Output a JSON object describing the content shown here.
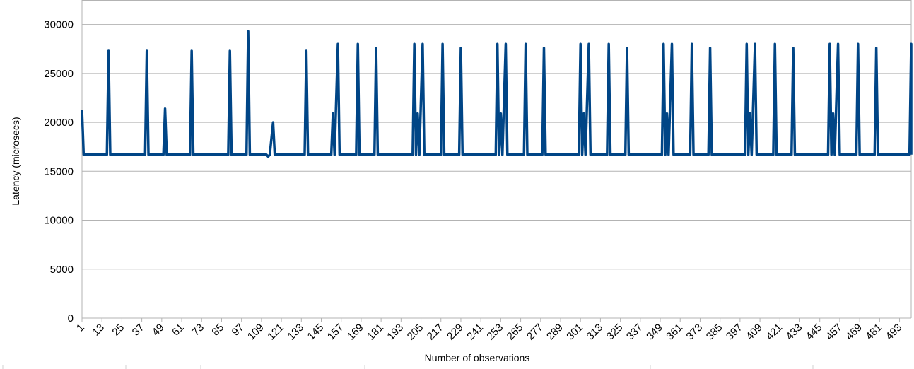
{
  "chart_data": {
    "type": "line",
    "title": "",
    "xlabel": "Number of observations",
    "ylabel": "Latency (microsecs)",
    "ylim": [
      0,
      32500
    ],
    "xlim": [
      1,
      500
    ],
    "grid": true,
    "line_color": "#004586",
    "yticks": [
      0,
      5000,
      10000,
      15000,
      20000,
      25000,
      30000
    ],
    "xtick_start": 1,
    "xtick_step": 12,
    "xtick_count": 42,
    "baseline": 16700,
    "series": [
      {
        "points": [
          [
            1,
            21300
          ],
          [
            2,
            16700
          ],
          [
            16,
            16700
          ],
          [
            17,
            27300
          ],
          [
            18,
            16700
          ],
          [
            39,
            16700
          ],
          [
            40,
            27300
          ],
          [
            41,
            16700
          ],
          [
            50,
            16700
          ],
          [
            51,
            21400
          ],
          [
            52,
            16700
          ],
          [
            66,
            16700
          ],
          [
            67,
            27300
          ],
          [
            68,
            16700
          ],
          [
            89,
            16700
          ],
          [
            90,
            27300
          ],
          [
            91,
            16700
          ],
          [
            100,
            16700
          ],
          [
            101,
            29300
          ],
          [
            102,
            16700
          ],
          [
            112,
            16700
          ],
          [
            113,
            16500
          ],
          [
            114,
            16700
          ],
          [
            116,
            20000
          ],
          [
            117,
            16700
          ],
          [
            135,
            16700
          ],
          [
            136,
            27300
          ],
          [
            137,
            16700
          ],
          [
            151,
            16700
          ],
          [
            152,
            20900
          ],
          [
            153,
            16700
          ],
          [
            155,
            28000
          ],
          [
            156,
            16700
          ],
          [
            166,
            16700
          ],
          [
            167,
            28000
          ],
          [
            168,
            16700
          ],
          [
            177,
            16700
          ],
          [
            178,
            27600
          ],
          [
            179,
            16700
          ],
          [
            200,
            16700
          ],
          [
            201,
            28000
          ],
          [
            202,
            16700
          ],
          [
            203,
            20900
          ],
          [
            204,
            16700
          ],
          [
            206,
            28000
          ],
          [
            207,
            16700
          ],
          [
            217,
            16700
          ],
          [
            218,
            28000
          ],
          [
            219,
            16700
          ],
          [
            228,
            16700
          ],
          [
            229,
            27600
          ],
          [
            230,
            16700
          ],
          [
            250,
            16700
          ],
          [
            251,
            28000
          ],
          [
            252,
            16700
          ],
          [
            253,
            20900
          ],
          [
            254,
            16700
          ],
          [
            256,
            28000
          ],
          [
            257,
            16700
          ],
          [
            267,
            16700
          ],
          [
            268,
            28000
          ],
          [
            269,
            16700
          ],
          [
            278,
            16700
          ],
          [
            279,
            27600
          ],
          [
            280,
            16700
          ],
          [
            300,
            16700
          ],
          [
            301,
            28000
          ],
          [
            302,
            16700
          ],
          [
            303,
            20900
          ],
          [
            304,
            16700
          ],
          [
            306,
            28000
          ],
          [
            307,
            16700
          ],
          [
            317,
            16700
          ],
          [
            318,
            28000
          ],
          [
            319,
            16700
          ],
          [
            328,
            16700
          ],
          [
            329,
            27600
          ],
          [
            330,
            16700
          ],
          [
            350,
            16700
          ],
          [
            351,
            28000
          ],
          [
            352,
            16700
          ],
          [
            353,
            20900
          ],
          [
            354,
            16700
          ],
          [
            356,
            28000
          ],
          [
            357,
            16700
          ],
          [
            367,
            16700
          ],
          [
            368,
            28000
          ],
          [
            369,
            16700
          ],
          [
            378,
            16700
          ],
          [
            379,
            27600
          ],
          [
            380,
            16700
          ],
          [
            400,
            16700
          ],
          [
            401,
            28000
          ],
          [
            402,
            16700
          ],
          [
            403,
            20900
          ],
          [
            404,
            16700
          ],
          [
            406,
            28000
          ],
          [
            407,
            16700
          ],
          [
            417,
            16700
          ],
          [
            418,
            28000
          ],
          [
            419,
            16700
          ],
          [
            428,
            16700
          ],
          [
            429,
            27600
          ],
          [
            430,
            16700
          ],
          [
            450,
            16700
          ],
          [
            451,
            28000
          ],
          [
            452,
            16700
          ],
          [
            453,
            20900
          ],
          [
            454,
            16700
          ],
          [
            456,
            28000
          ],
          [
            457,
            16700
          ],
          [
            467,
            16700
          ],
          [
            468,
            28000
          ],
          [
            469,
            16700
          ],
          [
            478,
            16700
          ],
          [
            479,
            27600
          ],
          [
            480,
            16700
          ],
          [
            499,
            16700
          ],
          [
            500,
            28000
          ],
          [
            501,
            16700
          ]
        ]
      }
    ]
  }
}
